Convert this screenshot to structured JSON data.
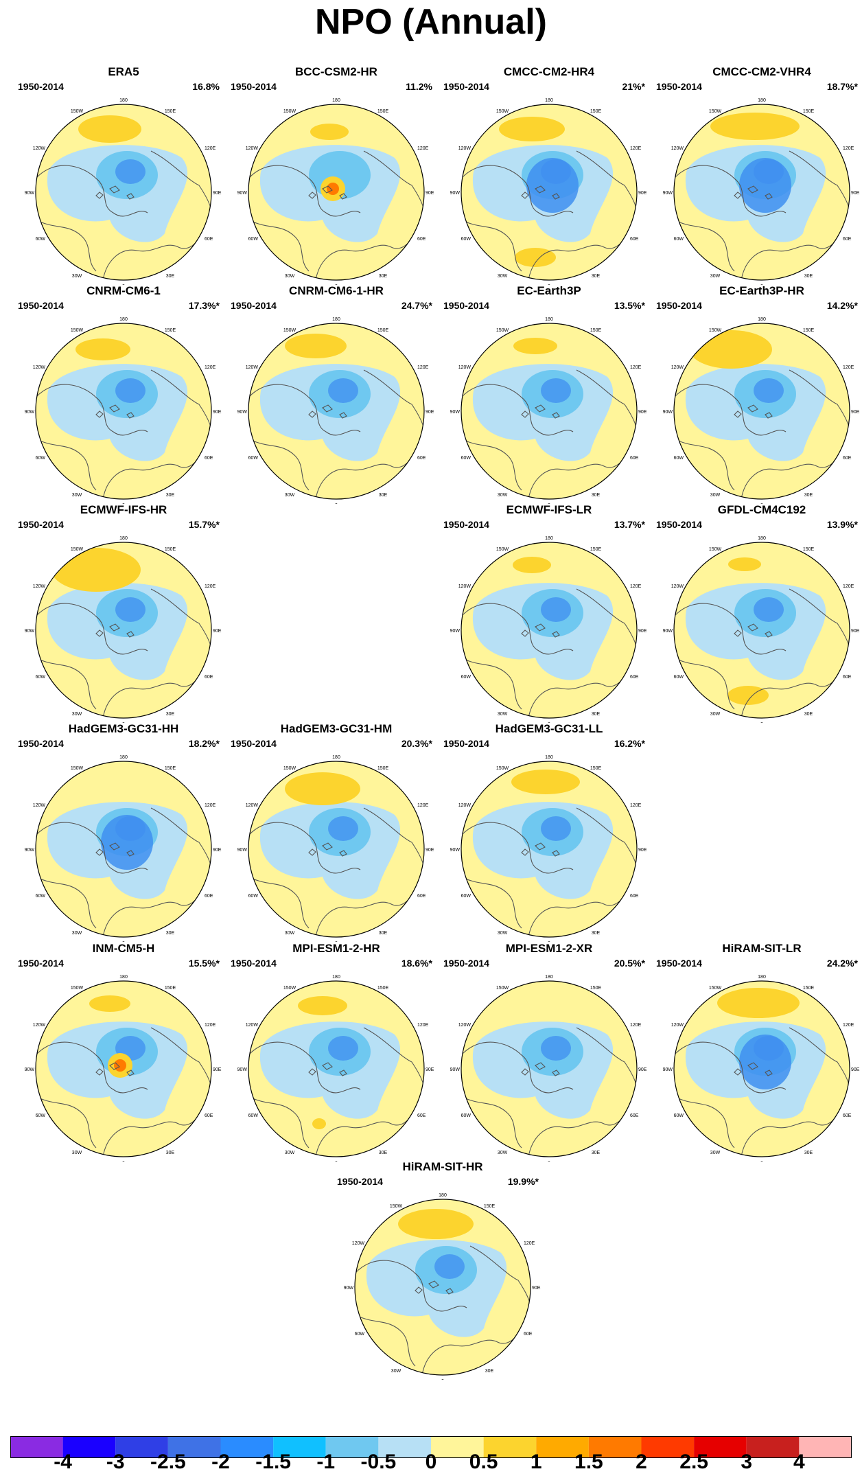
{
  "title": "NPO (Annual)",
  "panels": [
    {
      "name": "ERA5",
      "period": "1950-2014",
      "variance": "16.8%"
    },
    {
      "name": "BCC-CSM2-HR",
      "period": "1950-2014",
      "variance": "11.2%"
    },
    {
      "name": "CMCC-CM2-HR4",
      "period": "1950-2014",
      "variance": "21%*"
    },
    {
      "name": "CMCC-CM2-VHR4",
      "period": "1950-2014",
      "variance": "18.7%*"
    },
    {
      "name": "CNRM-CM6-1",
      "period": "1950-2014",
      "variance": "17.3%*"
    },
    {
      "name": "CNRM-CM6-1-HR",
      "period": "1950-2014",
      "variance": "24.7%*"
    },
    {
      "name": "EC-Earth3P",
      "period": "1950-2014",
      "variance": "13.5%*"
    },
    {
      "name": "EC-Earth3P-HR",
      "period": "1950-2014",
      "variance": "14.2%*"
    },
    {
      "name": "ECMWF-IFS-HR",
      "period": "1950-2014",
      "variance": "15.7%*"
    },
    {
      "name": "ECMWF-IFS-LR",
      "period": "1950-2014",
      "variance": "13.7%*"
    },
    {
      "name": "GFDL-CM4C192",
      "period": "1950-2014",
      "variance": "13.9%*"
    },
    {
      "name": "HadGEM3-GC31-HH",
      "period": "1950-2014",
      "variance": "18.2%*"
    },
    {
      "name": "HadGEM3-GC31-HM",
      "period": "1950-2014",
      "variance": "20.3%*"
    },
    {
      "name": "HadGEM3-GC31-LL",
      "period": "1950-2014",
      "variance": "16.2%*"
    },
    {
      "name": "INM-CM5-H",
      "period": "1950-2014",
      "variance": "15.5%*"
    },
    {
      "name": "MPI-ESM1-2-HR",
      "period": "1950-2014",
      "variance": "18.6%*"
    },
    {
      "name": "MPI-ESM1-2-XR",
      "period": "1950-2014",
      "variance": "20.5%*"
    },
    {
      "name": "HiRAM-SIT-LR",
      "period": "1950-2014",
      "variance": "24.2%*"
    },
    {
      "name": "HiRAM-SIT-HR",
      "period": "1950-2014",
      "variance": "19.9%*"
    }
  ],
  "map_labels": {
    "top": "180",
    "top_left": "150W",
    "top_right": "150E",
    "upper_left": "120W",
    "upper_right": "120E",
    "left": "90W",
    "right": "90E",
    "lower_left": "60W",
    "lower_right": "60E",
    "bottom_left": "30W",
    "bottom_right": "30E",
    "bottom": "0"
  },
  "colorbar": {
    "colors": [
      "#8a2be2",
      "#1a00ff",
      "#2f3fe6",
      "#3f72e6",
      "#2a8cff",
      "#10c0ff",
      "#6fc8f0",
      "#b7e0f5",
      "#fff59a",
      "#fcd42e",
      "#ffaa00",
      "#ff7a00",
      "#ff3a00",
      "#e60000",
      "#c8201e",
      "#ffb5b5"
    ],
    "labels": [
      "-4",
      "-3",
      "-2.5",
      "-2",
      "-1.5",
      "-1",
      "-0.5",
      "0",
      "0.5",
      "1",
      "1.5",
      "2",
      "2.5",
      "3",
      "4"
    ]
  },
  "fill_colors": {
    "background": "#fff59a",
    "weak_negative": "#b7e0f5",
    "moderate_negative": "#6fc8f0",
    "strong_negative": "#3f8ff0",
    "weak_positive": "#fcd42e",
    "strong_positive": "#ff7a00",
    "coastline": "#555555"
  }
}
